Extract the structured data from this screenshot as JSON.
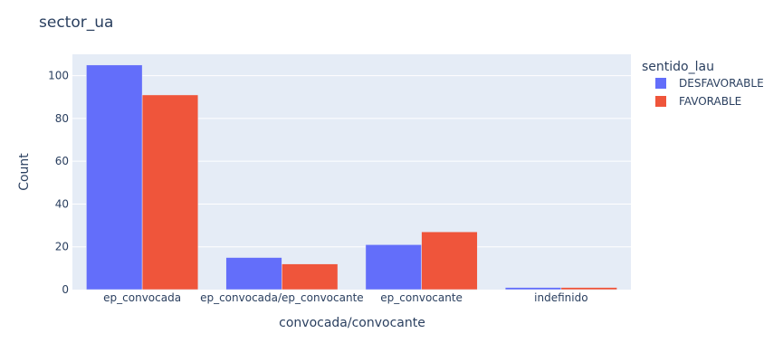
{
  "chart_data": {
    "type": "bar",
    "title": "sector_ua",
    "xlabel": "convocada/convocante",
    "ylabel": "Count",
    "categories": [
      "ep_convocada",
      "ep_convocada/ep_convocante",
      "ep_convocante",
      "indefinido"
    ],
    "series": [
      {
        "name": "DESFAVORABLE",
        "color": "#636efa",
        "values": [
          105,
          15,
          21,
          1
        ]
      },
      {
        "name": "FAVORABLE",
        "color": "#ef553b",
        "values": [
          91,
          12,
          27,
          1
        ]
      }
    ],
    "ylim": [
      0,
      110
    ],
    "yticks": [
      0,
      20,
      40,
      60,
      80,
      100
    ],
    "legend": {
      "title": "sentido_lau",
      "placement": "right"
    },
    "grid": true,
    "plot_background": "#e5ecf6"
  }
}
